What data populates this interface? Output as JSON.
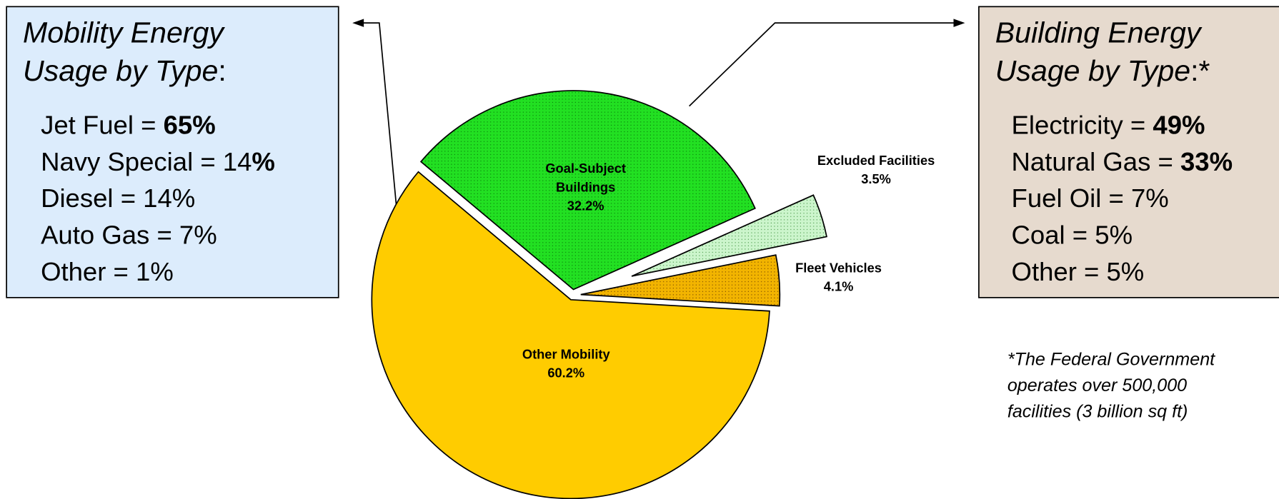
{
  "chart_data": {
    "type": "pie",
    "categories": [
      "Goal-Subject Buildings",
      "Excluded Facilities",
      "Fleet Vehicles",
      "Other Mobility"
    ],
    "values": [
      32.2,
      3.5,
      4.1,
      60.2
    ],
    "value_labels": [
      "32.2%",
      "3.5%",
      "4.1%",
      "60.2%"
    ],
    "colors": [
      "#22e022",
      "#ccf5cc",
      "#f2b400",
      "#ffcc00"
    ],
    "annotations": {
      "mobility": {
        "title": "Mobility Energy Usage by Type",
        "title_suffix": ":",
        "items": [
          {
            "text": "Jet Fuel = ",
            "bold": "65%"
          },
          {
            "text": "Navy Special = 14",
            "bold": "%"
          },
          {
            "text": "Diesel = 14%"
          },
          {
            "text": "Auto Gas = 7%"
          },
          {
            "text": "Other = 1%"
          }
        ]
      },
      "building": {
        "title": "Building Energy Usage by Type",
        "title_suffix": ":*",
        "items": [
          {
            "text": "Electricity = ",
            "bold": "49%"
          },
          {
            "text": "Natural Gas = ",
            "bold": "33%"
          },
          {
            "text": "Fuel Oil = 7%"
          },
          {
            "text": "Coal = 5%"
          },
          {
            "text": "Other = 5%"
          }
        ]
      },
      "footnote": [
        "*The Federal Government",
        "operates over 500,000",
        "facilities (3 billion sq ft)"
      ]
    }
  }
}
